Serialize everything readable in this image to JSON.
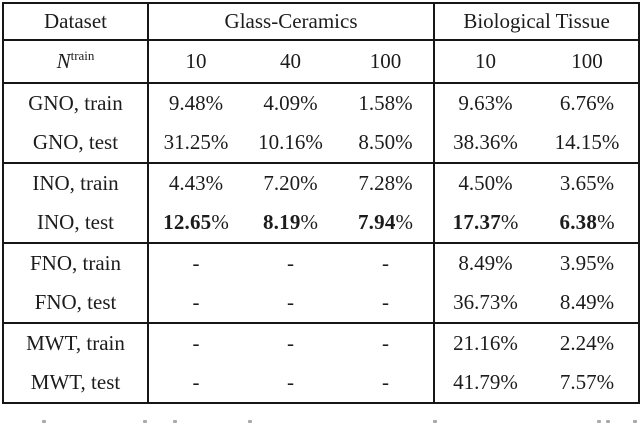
{
  "page": {
    "background": "#ffffff",
    "text_color": "#1c1c1c",
    "rule_color": "#161616"
  },
  "table": {
    "header": {
      "dataset": "Dataset",
      "group_glass": "Glass-Ceramics",
      "group_bio": "Biological Tissue"
    },
    "subheader": {
      "symbol": "N",
      "superscript": "train",
      "cols": [
        "10",
        "40",
        "100",
        "10",
        "100"
      ]
    },
    "rows": [
      {
        "label": "GNO, train",
        "values": [
          "9.48%",
          "4.09%",
          "1.58%",
          "9.63%",
          "6.76%"
        ],
        "bold": false
      },
      {
        "label": "GNO, test",
        "values": [
          "31.25%",
          "10.16%",
          "8.50%",
          "38.36%",
          "14.15%"
        ],
        "bold": false
      },
      {
        "label": "INO, train",
        "values": [
          "4.43%",
          "7.20%",
          "7.28%",
          "4.50%",
          "3.65%"
        ],
        "bold": false
      },
      {
        "label": "INO, test",
        "values": [
          "12.65%",
          "8.19%",
          "7.94%",
          "17.37%",
          "6.38%"
        ],
        "bold": true
      },
      {
        "label": "FNO, train",
        "values": [
          "-",
          "-",
          "-",
          "8.49%",
          "3.95%"
        ],
        "bold": false
      },
      {
        "label": "FNO, test",
        "values": [
          "-",
          "-",
          "-",
          "36.73%",
          "8.49%"
        ],
        "bold": false
      },
      {
        "label": "MWT, train",
        "values": [
          "-",
          "-",
          "-",
          "21.16%",
          "2.24%"
        ],
        "bold": false
      },
      {
        "label": "MWT, test",
        "values": [
          "-",
          "-",
          "-",
          "41.79%",
          "7.57%"
        ],
        "bold": false
      }
    ]
  }
}
